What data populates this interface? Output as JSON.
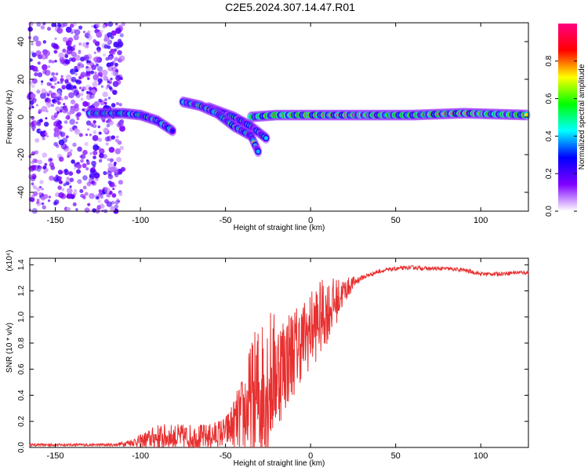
{
  "title": "C2E5.2024.307.14.47.R01",
  "chart_data": [
    {
      "type": "heatmap",
      "title": "C2E5.2024.307.14.47.R01",
      "xlabel": "Height of straight line (km)",
      "ylabel": "Frequency (Hz)",
      "xlim": [
        -165,
        128
      ],
      "ylim": [
        -50,
        50
      ],
      "x_ticks": [
        -150,
        -100,
        -50,
        0,
        50,
        100
      ],
      "y_ticks": [
        -40,
        -20,
        0,
        20,
        40
      ],
      "colorbar": {
        "label": "Normalized spectral amplitude",
        "range": [
          0,
          1
        ],
        "ticks": [
          "0.0",
          "0.2",
          "0.4",
          "0.6",
          "0.8"
        ],
        "colormap": [
          "#ffffff",
          "#8000ff",
          "#0000ff",
          "#00ffff",
          "#00ff00",
          "#ffff00",
          "#ff0000",
          "#ff0080"
        ]
      },
      "features": [
        {
          "name": "noise",
          "x_range": [
            -165,
            -110
          ],
          "y_range": [
            -50,
            50
          ],
          "amplitude": 0.15
        },
        {
          "name": "main trace",
          "points": [
            [
              -130,
              2
            ],
            [
              -110,
              2
            ],
            [
              -100,
              1
            ],
            [
              -90,
              -2
            ],
            [
              -80,
              -8
            ]
          ],
          "amplitude": 0.6
        },
        {
          "name": "rising trace",
          "points": [
            [
              -60,
              5
            ],
            [
              -45,
              0
            ],
            [
              -35,
              -5
            ],
            [
              -25,
              -12
            ]
          ],
          "amplitude": 0.5
        },
        {
          "name": "descending trace",
          "points": [
            [
              -75,
              8
            ],
            [
              -65,
              6
            ],
            [
              -55,
              2
            ],
            [
              -45,
              -5
            ],
            [
              -35,
              -10
            ],
            [
              -30,
              -20
            ]
          ],
          "amplitude": 0.6
        },
        {
          "name": "steady trace",
          "points": [
            [
              -35,
              0
            ],
            [
              -20,
              1
            ],
            [
              0,
              1
            ],
            [
              30,
              1
            ],
            [
              60,
              1
            ],
            [
              90,
              2
            ],
            [
              128,
              1
            ]
          ],
          "amplitude": 0.95
        }
      ]
    },
    {
      "type": "line",
      "xlabel": "Height of straight line (km)",
      "ylabel": "SNR (10 * v/v)",
      "y_multiplier": "(x10⁴)",
      "xlim": [
        -165,
        128
      ],
      "ylim": [
        0,
        1.45
      ],
      "x_ticks": [
        -150,
        -100,
        -50,
        0,
        50,
        100
      ],
      "y_ticks": [
        "0.0",
        "0.2",
        "0.4",
        "0.6",
        "0.8",
        "1.0",
        "1.2",
        "1.4"
      ],
      "color": "#e83030",
      "envelope": {
        "x": [
          -165,
          -140,
          -115,
          -105,
          -100,
          -90,
          -80,
          -70,
          -60,
          -50,
          -45,
          -40,
          -35,
          -30,
          -25,
          -20,
          -15,
          -10,
          -5,
          0,
          5,
          10,
          15,
          20,
          25,
          30,
          40,
          50,
          60,
          70,
          80,
          90,
          100,
          110,
          120,
          128
        ],
        "base": [
          0.02,
          0.02,
          0.02,
          0.04,
          0.05,
          0.08,
          0.08,
          0.08,
          0.08,
          0.12,
          0.18,
          0.25,
          0.32,
          0.4,
          0.5,
          0.58,
          0.66,
          0.74,
          0.82,
          0.9,
          0.98,
          1.05,
          1.12,
          1.2,
          1.26,
          1.3,
          1.35,
          1.37,
          1.38,
          1.37,
          1.37,
          1.36,
          1.33,
          1.33,
          1.34,
          1.34
        ],
        "amp": [
          0.01,
          0.01,
          0.01,
          0.03,
          0.05,
          0.1,
          0.1,
          0.1,
          0.1,
          0.12,
          0.2,
          0.3,
          0.5,
          0.6,
          0.6,
          0.45,
          0.4,
          0.35,
          0.3,
          0.3,
          0.3,
          0.25,
          0.18,
          0.1,
          0.05,
          0.02,
          0.015,
          0.015,
          0.015,
          0.015,
          0.015,
          0.015,
          0.015,
          0.015,
          0.015,
          0.015
        ]
      }
    }
  ]
}
